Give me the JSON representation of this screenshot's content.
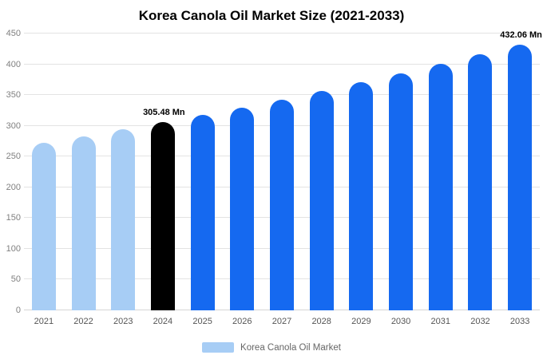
{
  "title": "Korea Canola Oil Market Size (2021-2033)",
  "legend": {
    "label": "Korea Canola Oil Market",
    "swatch_color": "#a7cdf5"
  },
  "colors": {
    "historical": "#a7cdf5",
    "highlight": "#000000",
    "forecast": "#1569f0",
    "grid": "#e3e3e3",
    "y_tick_text": "#808080",
    "x_tick_text": "#555555"
  },
  "chart_data": {
    "type": "bar",
    "title": "Korea Canola Oil Market Size (2021-2033)",
    "unit": "Mn",
    "categories": [
      "2021",
      "2022",
      "2023",
      "2024",
      "2025",
      "2026",
      "2027",
      "2028",
      "2029",
      "2030",
      "2031",
      "2032",
      "2033"
    ],
    "values": [
      272.1,
      282.8,
      293.9,
      305.48,
      317.5,
      330.0,
      343.0,
      356.5,
      370.5,
      385.1,
      400.2,
      415.9,
      432.06
    ],
    "bar_colors": [
      "#a7cdf5",
      "#a7cdf5",
      "#a7cdf5",
      "#000000",
      "#1569f0",
      "#1569f0",
      "#1569f0",
      "#1569f0",
      "#1569f0",
      "#1569f0",
      "#1569f0",
      "#1569f0",
      "#1569f0"
    ],
    "annotations": [
      {
        "category": "2024",
        "text": "305.48 Mn"
      },
      {
        "category": "2033",
        "text": "432.06 Mn"
      }
    ],
    "xlabel": "",
    "ylabel": "",
    "ylim": [
      0,
      450
    ],
    "ytick_step": 50,
    "grid": true,
    "legend_position": "bottom"
  }
}
